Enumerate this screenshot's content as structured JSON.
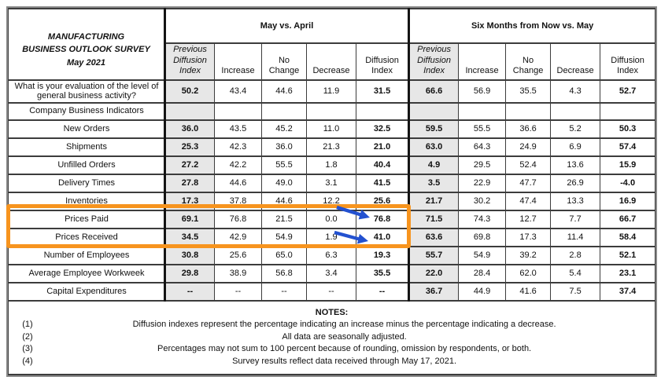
{
  "header": {
    "title": "MANUFACTURING\nBUSINESS OUTLOOK SURVEY\nMay 2021",
    "group1": "May vs. April",
    "group2": "Six Months from Now vs. May",
    "columns": {
      "previous": "Previous\nDiffusion\nIndex",
      "increase": "Increase",
      "no_change": "No\nChange",
      "decrease": "Decrease",
      "diffusion": "Diffusion\nIndex"
    }
  },
  "rows": [
    {
      "label": "What is your evaluation of the level of general business activity?",
      "may": [
        "50.2",
        "43.4",
        "44.6",
        "11.9",
        "31.5"
      ],
      "six": [
        "66.6",
        "56.9",
        "35.5",
        "4.3",
        "52.7"
      ]
    },
    {
      "label": "Company Business Indicators",
      "may": [
        "",
        "",
        "",
        "",
        ""
      ],
      "six": [
        "",
        "",
        "",
        "",
        ""
      ]
    },
    {
      "label": "New Orders",
      "may": [
        "36.0",
        "43.5",
        "45.2",
        "11.0",
        "32.5"
      ],
      "six": [
        "59.5",
        "55.5",
        "36.6",
        "5.2",
        "50.3"
      ]
    },
    {
      "label": "Shipments",
      "may": [
        "25.3",
        "42.3",
        "36.0",
        "21.3",
        "21.0"
      ],
      "six": [
        "63.0",
        "64.3",
        "24.9",
        "6.9",
        "57.4"
      ]
    },
    {
      "label": "Unfilled Orders",
      "may": [
        "27.2",
        "42.2",
        "55.5",
        "1.8",
        "40.4"
      ],
      "six": [
        "4.9",
        "29.5",
        "52.4",
        "13.6",
        "15.9"
      ]
    },
    {
      "label": "Delivery Times",
      "may": [
        "27.8",
        "44.6",
        "49.0",
        "3.1",
        "41.5"
      ],
      "six": [
        "3.5",
        "22.9",
        "47.7",
        "26.9",
        "-4.0"
      ]
    },
    {
      "label": "Inventories",
      "may": [
        "17.3",
        "37.8",
        "44.6",
        "12.2",
        "25.6"
      ],
      "six": [
        "21.7",
        "30.2",
        "47.4",
        "13.3",
        "16.9"
      ]
    },
    {
      "label": "Prices Paid",
      "may": [
        "69.1",
        "76.8",
        "21.5",
        "0.0",
        "76.8"
      ],
      "six": [
        "71.5",
        "74.3",
        "12.7",
        "7.7",
        "66.7"
      ],
      "highlighted": true,
      "arrow": true
    },
    {
      "label": "Prices Received",
      "may": [
        "34.5",
        "42.9",
        "54.9",
        "1.9",
        "41.0"
      ],
      "six": [
        "63.6",
        "69.8",
        "17.3",
        "11.4",
        "58.4"
      ],
      "highlighted": true,
      "arrow": true
    },
    {
      "label": "Number of Employees",
      "may": [
        "30.8",
        "25.6",
        "65.0",
        "6.3",
        "19.3"
      ],
      "six": [
        "55.7",
        "54.9",
        "39.2",
        "2.8",
        "52.1"
      ]
    },
    {
      "label": "Average Employee Workweek",
      "may": [
        "29.8",
        "38.9",
        "56.8",
        "3.4",
        "35.5"
      ],
      "six": [
        "22.0",
        "28.4",
        "62.0",
        "5.4",
        "23.1"
      ]
    },
    {
      "label": "Capital Expenditures",
      "may": [
        "--",
        "--",
        "--",
        "--",
        "--"
      ],
      "six": [
        "36.7",
        "44.9",
        "41.6",
        "7.5",
        "37.4"
      ]
    }
  ],
  "notes": {
    "title": "NOTES:",
    "items": [
      {
        "num": "(1)",
        "text": "Diffusion indexes represent the percentage indicating an increase minus the percentage indicating a decrease."
      },
      {
        "num": "(2)",
        "text": "All data are seasonally adjusted."
      },
      {
        "num": "(3)",
        "text": "Percentages may not sum to 100 percent because of rounding, omission by respondents, or both."
      },
      {
        "num": "(4)",
        "text": "Survey results reflect data received through May 17, 2021."
      }
    ]
  },
  "annotations": {
    "highlighted_rows": [
      "Prices Paid",
      "Prices Received"
    ],
    "arrow_targets": [
      "76.8",
      "41.0"
    ],
    "highlight_color": "#F7941E",
    "arrow_color": "#2351D0"
  }
}
